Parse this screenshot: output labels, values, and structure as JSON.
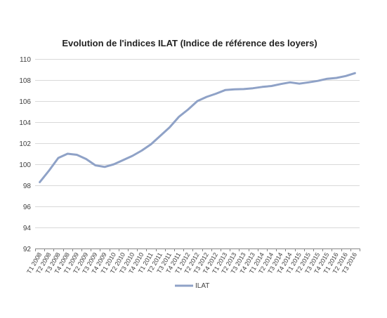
{
  "chart_data": {
    "type": "line",
    "title": "Evolution de l'indices ILAT (Indice de référence des loyers)",
    "xlabel": "",
    "ylabel": "",
    "ylim": [
      92,
      110
    ],
    "yticks": [
      "92",
      "94",
      "96",
      "98",
      "100",
      "102",
      "104",
      "106",
      "108",
      "110"
    ],
    "grid": true,
    "legend_position": "bottom",
    "categories": [
      "T1 2008",
      "T2 2008",
      "T3 2008",
      "T4 2008",
      "T1 2009",
      "T2 2009",
      "T3 2009",
      "T4 2009",
      "T1 2010",
      "T2 2010",
      "T3 2010",
      "T4 2010",
      "T1 2011",
      "T2 2011",
      "T3 2011",
      "T4 2011",
      "T1 2012",
      "T2 2012",
      "T3 2012",
      "T4 2012",
      "T1 2013",
      "T2 2013",
      "T3 2013",
      "T4 2013",
      "T1 2014",
      "T2 2014",
      "T3 2014",
      "T4 2014",
      "T1 2015",
      "T2 2015",
      "T3 2015",
      "T4 2015",
      "T1 2016",
      "T2 2016",
      "T3 2016"
    ],
    "series": [
      {
        "name": "ILAT",
        "color": "#8FA2C7",
        "values": [
          98.3,
          99.4,
          100.6,
          101.0,
          100.9,
          100.5,
          99.9,
          99.75,
          100.0,
          100.4,
          100.8,
          101.3,
          101.9,
          102.7,
          103.5,
          104.5,
          105.2,
          106.0,
          106.4,
          106.7,
          107.05,
          107.12,
          107.14,
          107.22,
          107.35,
          107.43,
          107.62,
          107.78,
          107.65,
          107.78,
          107.92,
          108.12,
          108.2,
          108.38,
          108.65
        ]
      }
    ]
  }
}
